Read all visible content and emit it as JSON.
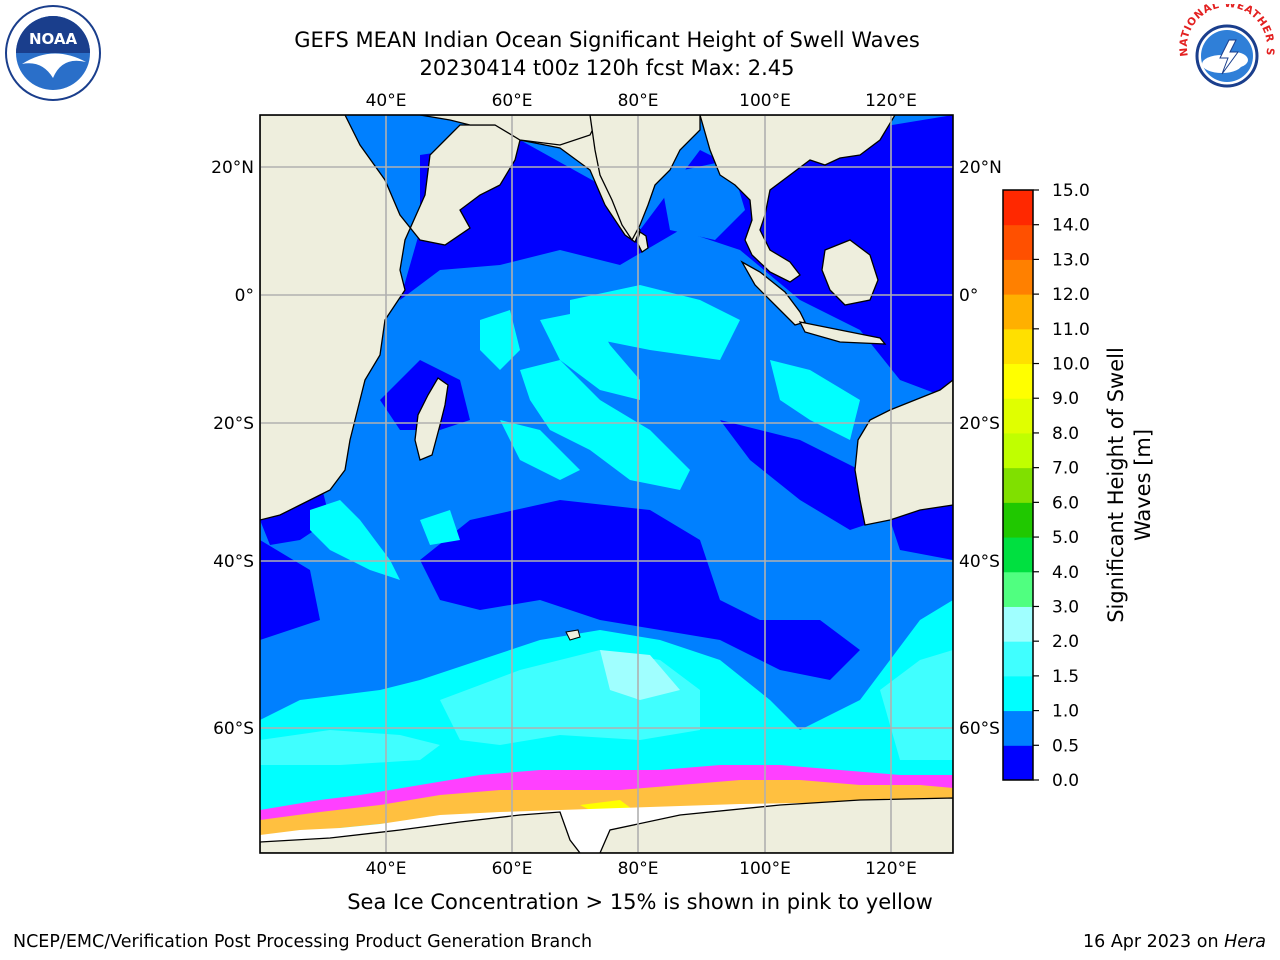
{
  "title": {
    "line1": "GEFS MEAN Indian Ocean Significant Height of Swell Waves",
    "line2": "20230414 t00z 120h fcst   Max: 2.45"
  },
  "map": {
    "region": "Indian Ocean",
    "lon_ticks_top": [
      "40°E",
      "60°E",
      "80°E",
      "100°E",
      "120°E"
    ],
    "lon_ticks_bottom": [
      "40°E",
      "60°E",
      "80°E",
      "100°E",
      "120°E"
    ],
    "lat_ticks_left": [
      "20°N",
      "0°",
      "20°S",
      "40°S",
      "60°S"
    ],
    "lat_ticks_right": [
      "20°N",
      "0°",
      "20°S",
      "40°S",
      "60°S"
    ],
    "colors": {
      "land": "#eeeedd",
      "swell_0_0_5": "#0000ff",
      "swell_0_5_1_0": "#0080ff",
      "swell_1_0_1_5": "#00ffff",
      "swell_1_5_2_0": "#40ffff",
      "swell_2_0_3_0": "#a0ffff",
      "sea_ice_edge": [
        "#ff40ff",
        "#ff80c0",
        "#ffc040",
        "#ffff00"
      ],
      "grid": "#b0b0b0"
    }
  },
  "colorbar": {
    "label_line1": "Significant Height of Swell",
    "label_line2": "Waves [m]",
    "ticks": [
      "0.0",
      "0.5",
      "1.0",
      "1.5",
      "2.0",
      "3.0",
      "4.0",
      "5.0",
      "6.0",
      "7.0",
      "8.0",
      "9.0",
      "10.0",
      "11.0",
      "12.0",
      "13.0",
      "14.0",
      "15.0"
    ],
    "colors": [
      "#0000ff",
      "#0080ff",
      "#00ffff",
      "#40ffff",
      "#a0ffff",
      "#50ff80",
      "#00e040",
      "#20c800",
      "#80e000",
      "#c0ff00",
      "#e0ff00",
      "#ffff00",
      "#ffe000",
      "#ffb000",
      "#ff8000",
      "#ff5000",
      "#ff2800",
      "#ff0000"
    ]
  },
  "caption": "Sea Ice Concentration > 15% is shown in pink to yellow",
  "footer": {
    "left": "NCEP/EMC/Verification Post Processing Product Generation Branch",
    "right_date": "16 Apr 2023 on",
    "right_host": "Hera"
  },
  "logos": {
    "noaa_text": "NOAA",
    "nws_text": "NATIONAL WEATHER SERVICE"
  }
}
